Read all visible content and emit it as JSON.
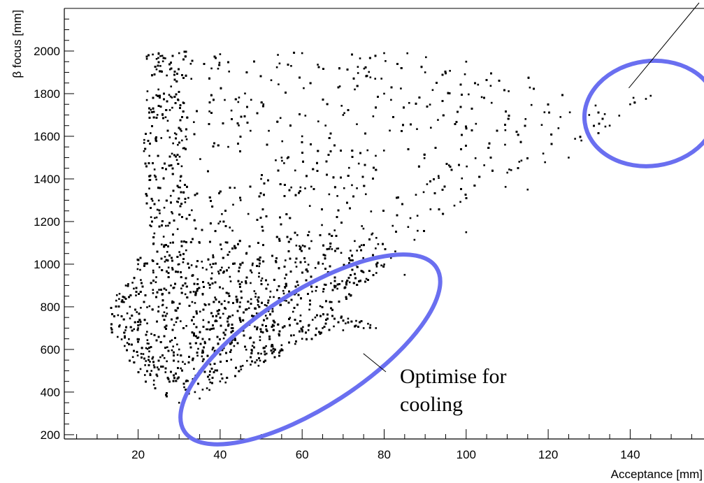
{
  "chart_data": {
    "type": "scatter",
    "title": "",
    "xlabel": "Acceptance [mm]",
    "ylabel": "β focus [mm]",
    "xlim": [
      2,
      158
    ],
    "ylim": [
      180,
      2200
    ],
    "x_ticks": [
      20,
      40,
      60,
      80,
      100,
      120,
      140
    ],
    "x_tick_labels": [
      "20",
      "40",
      "60",
      "80",
      "100",
      "120",
      "140"
    ],
    "y_ticks": [
      200,
      400,
      600,
      800,
      1000,
      1200,
      1400,
      1600,
      1800,
      2000
    ],
    "y_tick_labels": [
      "200",
      "400",
      "600",
      "800",
      "1000",
      "1200",
      "1400",
      "1600",
      "1800",
      "2000"
    ],
    "grid": false,
    "marker_color": "#000000",
    "highlight_color": "#6a6ff0",
    "series": [
      {
        "points": [
          [
            30,
            600
          ],
          [
            35,
            500
          ],
          [
            40,
            450
          ],
          [
            45,
            520
          ],
          [
            50,
            580
          ],
          [
            55,
            620
          ],
          [
            60,
            650
          ],
          [
            65,
            700
          ],
          [
            70,
            690
          ],
          [
            75,
            700
          ],
          [
            78,
            700
          ],
          [
            25,
            800
          ],
          [
            28,
            900
          ],
          [
            30,
            1000
          ],
          [
            35,
            1100
          ],
          [
            40,
            1200
          ],
          [
            45,
            1300
          ],
          [
            50,
            1400
          ],
          [
            55,
            1500
          ],
          [
            60,
            1600
          ],
          [
            70,
            1700
          ],
          [
            80,
            1800
          ],
          [
            90,
            1900
          ],
          [
            100,
            1950
          ],
          [
            25,
            1990
          ],
          [
            30,
            1990
          ],
          [
            40,
            1985
          ],
          [
            60,
            1990
          ],
          [
            80,
            1990
          ],
          [
            100,
            1950
          ],
          [
            120,
            1750
          ],
          [
            130,
            1700
          ],
          [
            140,
            1750
          ],
          [
            145,
            1790
          ],
          [
            20,
            700
          ],
          [
            18,
            800
          ],
          [
            17,
            900
          ],
          [
            20,
            1000
          ],
          [
            35,
            370
          ],
          [
            30,
            350
          ],
          [
            85,
            950
          ],
          [
            100,
            1150
          ],
          [
            115,
            1350
          ],
          [
            125,
            1500
          ],
          [
            135,
            1650
          ]
        ]
      }
    ],
    "annotations": [
      {
        "text_lines": [
          "Optimise for",
          "cooling"
        ],
        "target": [
          78,
          620
        ]
      },
      {
        "target": [
          140,
          1820
        ]
      }
    ],
    "highlight_ellipses": [
      {
        "label": "cooling-region",
        "center": [
          62,
          600
        ],
        "rx_data": [
          38,
          280
        ]
      },
      {
        "label": "high-acceptance-region",
        "center": [
          146,
          1720
        ],
        "rx_data": [
          16,
          210
        ]
      }
    ]
  }
}
